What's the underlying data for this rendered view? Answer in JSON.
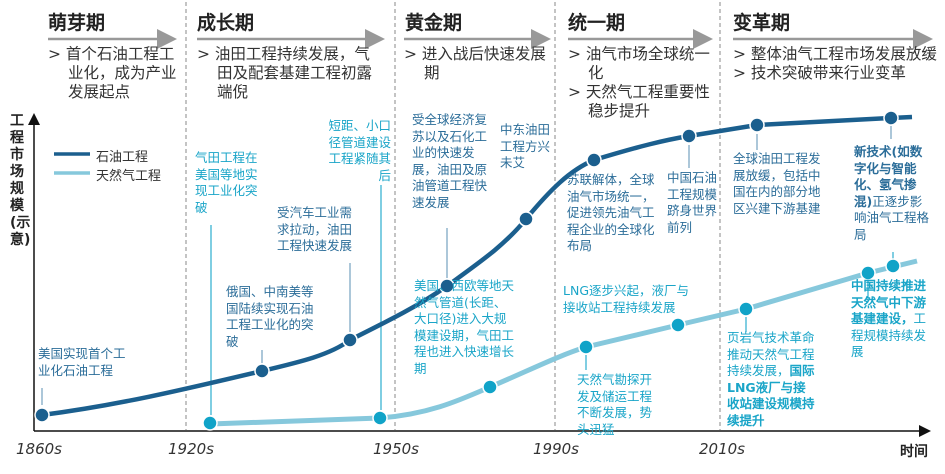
{
  "phases": [
    {
      "title": "萌芽期",
      "bullets": [
        "> 首个石油工程工业化，成为产业发展起点"
      ]
    },
    {
      "title": "成长期",
      "bullets": [
        "> 油田工程持续发展，气田及配套基建工程初露端倪"
      ]
    },
    {
      "title": "黄金期",
      "bullets": [
        "> 进入战后快速发展期"
      ]
    },
    {
      "title": "统一期",
      "bullets": [
        "> 油气市场全球统一化",
        "> 天然气工程重要性稳步提升"
      ]
    },
    {
      "title": "变革期",
      "bullets": [
        "> 整体油气工程市场发展放缓",
        "> 技术突破带来行业变革"
      ]
    }
  ],
  "axis": {
    "y_label": "工程市场规模(示意)",
    "x_label": "时间",
    "x_ticks": [
      "1860s",
      "1920s",
      "1950s",
      "1990s",
      "2010s"
    ]
  },
  "legend": {
    "oil": "石油工程",
    "gas": "天然气工程"
  },
  "colors": {
    "oil": "#1b5f8e",
    "gas": "#86c8dc",
    "gas_dot": "#10a3c8"
  },
  "annotations": {
    "a1": "美国实现首个工业化石油工程",
    "a2": "俄国、中南美等国陆续实现石油工程工业化的突破",
    "a3": "受汽车工业需求拉动，油田工程快速发展",
    "a4": "气田工程在美国等地实现工业化突破",
    "a5": "短距、小口径管道建设工程紧随其后",
    "a6": "受全球经济复苏以及石化工业的快速发展，油田及原油管道工程快速发展",
    "a7": "中东油田工程方兴未艾",
    "a8": "美国、西欧等地天然气管道(长距、大口径)进入大规模建设期，气田工程也进入快速增长期",
    "a9": "苏联解体，全球油气市场统一，促进领先油气工程企业的全球化布局",
    "a10": "中国石油工程规模跻身世界前列",
    "a11": "LNG逐步兴起，液厂与接收站工程持续发展",
    "a12": "天然气勘探开发及储运工程不断发展，势头迅猛",
    "a13": "全球油田工程发展放缓，包括中国在内的部分地区兴建下游基建",
    "a14a": "新技术(如数字化与智能化、氢气掺混)",
    "a14b": "正逐步影响油气工程格局",
    "a15a": "页岩气技术革命推动天然气工程持续发展，",
    "a15b": "国际LNG液厂与接收站建设规模持续提升",
    "a16a": "中国持续推进天然气中下游基建建设，",
    "a16b": "工程规模持续发展"
  }
}
